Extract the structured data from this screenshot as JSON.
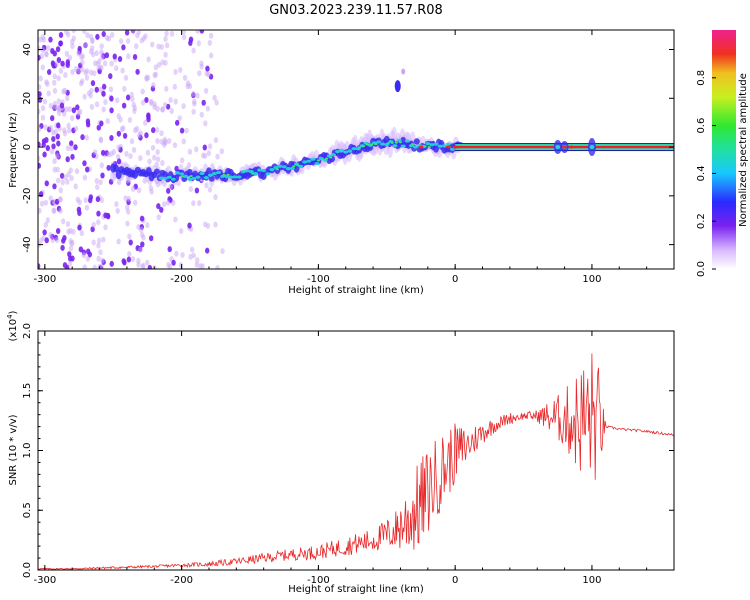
{
  "title": "GN03.2023.239.11.57.R08",
  "colors": {
    "snr_line": "#e8282a",
    "axes": "#000000",
    "spectrogram_dots": "#7a22f0",
    "spectrogram_core": "#22d3d8",
    "spectrogram_peak": "#f0202a"
  },
  "chart_data": [
    {
      "type": "heatmap",
      "title": "",
      "xlabel": "Height of straight line (km)",
      "ylabel": "Frequency (Hz)",
      "xlim": [
        -305,
        160
      ],
      "ylim": [
        -50,
        48
      ],
      "xticks": [
        -300,
        -200,
        -100,
        0,
        100
      ],
      "yticks": [
        -40,
        -20,
        0,
        20,
        40
      ],
      "colorbar": {
        "label": "Normalized spectral amplitude",
        "range": [
          0.0,
          1.0
        ],
        "ticks": [
          "0.0",
          "0.2",
          "0.4",
          "0.6",
          "0.8"
        ]
      },
      "ridge": [
        {
          "x": -250,
          "y": -10
        },
        {
          "x": -200,
          "y": -12
        },
        {
          "x": -150,
          "y": -11
        },
        {
          "x": -120,
          "y": -8
        },
        {
          "x": -90,
          "y": -4
        },
        {
          "x": -65,
          "y": 1
        },
        {
          "x": -40,
          "y": 2
        },
        {
          "x": -20,
          "y": 0
        },
        {
          "x": 0,
          "y": 0
        },
        {
          "x": 50,
          "y": 0
        },
        {
          "x": 100,
          "y": 0
        },
        {
          "x": 160,
          "y": 0
        }
      ],
      "noise_region": [
        -305,
        -180
      ]
    },
    {
      "type": "line",
      "title": "",
      "xlabel": "Height of straight line (km)",
      "ylabel": "SNR (10 * v/v)",
      "y_multiplier": "(x10",
      "y_multiplier_exp": "4",
      "xlim": [
        -305,
        160
      ],
      "ylim": [
        0,
        2.0
      ],
      "xticks": [
        -300,
        -200,
        -100,
        0,
        100
      ],
      "yticks": [
        "0.0",
        "0.5",
        "1.0",
        "1.5",
        "2.0"
      ],
      "series": [
        {
          "x": [
            -305,
            -280,
            -250,
            -220,
            -200,
            -180,
            -160,
            -140,
            -120,
            -100,
            -80,
            -60,
            -45,
            -35,
            -25,
            -15,
            -5,
            0,
            10,
            20,
            30,
            40,
            50,
            60,
            70,
            80,
            90,
            100,
            105,
            110,
            120,
            140,
            160
          ],
          "y": [
            0.01,
            0.01,
            0.02,
            0.03,
            0.04,
            0.05,
            0.07,
            0.1,
            0.13,
            0.15,
            0.2,
            0.25,
            0.32,
            0.42,
            0.55,
            0.75,
            0.9,
            0.98,
            1.05,
            1.15,
            1.22,
            1.27,
            1.29,
            1.29,
            1.28,
            1.26,
            1.25,
            1.28,
            1.22,
            1.2,
            1.18,
            1.16,
            1.13
          ],
          "spread": [
            0.005,
            0.005,
            0.01,
            0.01,
            0.015,
            0.02,
            0.03,
            0.04,
            0.05,
            0.06,
            0.08,
            0.1,
            0.15,
            0.3,
            0.4,
            0.35,
            0.3,
            0.25,
            0.15,
            0.1,
            0.06,
            0.05,
            0.03,
            0.05,
            0.15,
            0.25,
            0.45,
            0.6,
            0.5,
            0.01,
            0.01,
            0.01,
            0.01
          ]
        }
      ]
    }
  ]
}
